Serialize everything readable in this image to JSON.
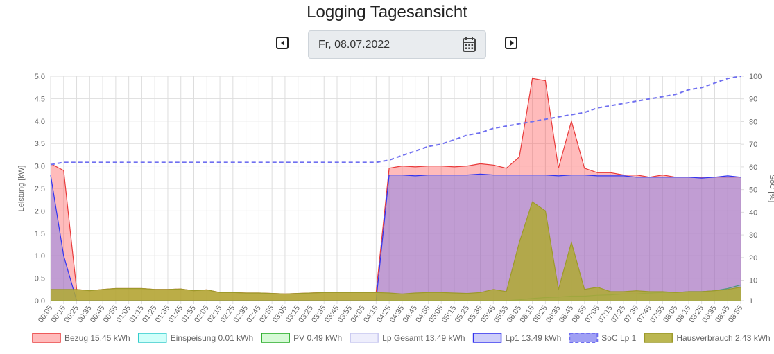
{
  "title": "Logging Tagesansicht",
  "date": "Fr, 08.07.2022",
  "chart_data": {
    "type": "line",
    "ylabel": "Leistung [kW]",
    "y2label": "SoC [%]",
    "categories": [
      "00:05",
      "00:15",
      "00:25",
      "00:35",
      "00:45",
      "00:55",
      "01:05",
      "01:15",
      "01:25",
      "01:35",
      "01:45",
      "01:55",
      "02:05",
      "02:15",
      "02:25",
      "02:35",
      "02:45",
      "02:55",
      "03:05",
      "03:15",
      "03:25",
      "03:35",
      "03:45",
      "03:55",
      "04:05",
      "04:15",
      "04:25",
      "04:35",
      "04:45",
      "04:55",
      "05:05",
      "05:15",
      "05:25",
      "05:35",
      "05:45",
      "05:55",
      "06:05",
      "06:15",
      "06:25",
      "06:35",
      "06:45",
      "06:55",
      "07:05",
      "07:15",
      "07:25",
      "07:35",
      "07:45",
      "07:55",
      "08:05",
      "08:15",
      "08:25",
      "08:35",
      "08:45",
      "08:55"
    ],
    "ylim": [
      0,
      5
    ],
    "yticks": [
      {
        "value": 0,
        "label": "0.0"
      },
      {
        "value": 0.5,
        "label": "0.5"
      },
      {
        "value": 1,
        "label": "1.0"
      },
      {
        "value": 1.5,
        "label": "1.5"
      },
      {
        "value": 2,
        "label": "2.0"
      },
      {
        "value": 2.5,
        "label": "2.5"
      },
      {
        "value": 3,
        "label": "3.0"
      },
      {
        "value": 3.5,
        "label": "3.5"
      },
      {
        "value": 4,
        "label": "4.0"
      },
      {
        "value": 4.5,
        "label": "4.5"
      },
      {
        "value": 5,
        "label": "5.0"
      }
    ],
    "y2lim": [
      1,
      100
    ],
    "y2ticks": [
      1,
      10,
      20,
      30,
      40,
      50,
      60,
      70,
      80,
      90,
      100
    ],
    "grid": true,
    "legend": "bottom",
    "series": [
      {
        "name": "Bezug 15.45 kWh",
        "color": "#e83a3a",
        "fill": "rgba(255,60,60,0.35)",
        "values": [
          3.05,
          2.9,
          0.25,
          0.22,
          0.25,
          0.27,
          0.27,
          0.27,
          0.25,
          0.25,
          0.26,
          0.22,
          0.24,
          0.18,
          0.18,
          0.17,
          0.17,
          0.16,
          0.15,
          0.16,
          0.17,
          0.18,
          0.18,
          0.18,
          0.18,
          0.18,
          2.95,
          3.0,
          2.98,
          3.0,
          3.0,
          2.98,
          3.0,
          3.05,
          3.02,
          2.95,
          3.2,
          4.95,
          4.9,
          2.95,
          4.0,
          2.95,
          2.85,
          2.85,
          2.8,
          2.8,
          2.75,
          2.8,
          2.75,
          2.75,
          2.75,
          2.75,
          2.75,
          2.75
        ]
      },
      {
        "name": "Einspeisung 0.01 kWh",
        "color": "#33cccc",
        "fill": "rgba(120,255,240,0.35)",
        "values": [
          0,
          0,
          0,
          0,
          0,
          0,
          0,
          0,
          0,
          0,
          0,
          0,
          0,
          0,
          0,
          0,
          0,
          0,
          0,
          0,
          0,
          0,
          0,
          0,
          0,
          0,
          0,
          0,
          0,
          0,
          0,
          0,
          0,
          0,
          0,
          0,
          0,
          0,
          0,
          0,
          0,
          0,
          0,
          0,
          0,
          0,
          0,
          0,
          0,
          0,
          0,
          0,
          0,
          0
        ]
      },
      {
        "name": "PV 0.49 kWh",
        "color": "#22aa22",
        "fill": "rgba(120,240,120,0.3)",
        "values": [
          0,
          0,
          0,
          0,
          0,
          0,
          0,
          0,
          0,
          0,
          0,
          0,
          0,
          0,
          0,
          0,
          0,
          0,
          0,
          0,
          0,
          0,
          0,
          0,
          0,
          0,
          0,
          0,
          0,
          0,
          0,
          0,
          0,
          0,
          0,
          0,
          0.02,
          0.05,
          0.07,
          0.08,
          0.1,
          0.1,
          0.12,
          0.13,
          0.15,
          0.15,
          0.17,
          0.18,
          0.18,
          0.2,
          0.2,
          0.22,
          0.27,
          0.35
        ]
      },
      {
        "name": "Lp Gesamt 13.49 kWh",
        "color": "#c8c8f0",
        "fill": "rgba(200,200,245,0.3)",
        "values": [
          2.8,
          1.0,
          0,
          0,
          0,
          0,
          0,
          0,
          0,
          0,
          0,
          0,
          0,
          0,
          0,
          0,
          0,
          0,
          0,
          0,
          0,
          0,
          0,
          0,
          0,
          0,
          2.8,
          2.8,
          2.78,
          2.8,
          2.8,
          2.8,
          2.8,
          2.82,
          2.8,
          2.8,
          2.8,
          2.8,
          2.8,
          2.78,
          2.8,
          2.8,
          2.78,
          2.78,
          2.78,
          2.75,
          2.75,
          2.75,
          2.75,
          2.75,
          2.73,
          2.75,
          2.78,
          2.75
        ]
      },
      {
        "name": "Lp1 13.49 kWh",
        "color": "#3333ee",
        "fill": "rgba(60,60,230,0.25)",
        "values": [
          2.8,
          1.0,
          0,
          0,
          0,
          0,
          0,
          0,
          0,
          0,
          0,
          0,
          0,
          0,
          0,
          0,
          0,
          0,
          0,
          0,
          0,
          0,
          0,
          0,
          0,
          0,
          2.8,
          2.8,
          2.78,
          2.8,
          2.8,
          2.8,
          2.8,
          2.82,
          2.8,
          2.8,
          2.8,
          2.8,
          2.8,
          2.78,
          2.8,
          2.8,
          2.78,
          2.78,
          2.78,
          2.75,
          2.75,
          2.75,
          2.75,
          2.75,
          2.73,
          2.75,
          2.78,
          2.75
        ]
      },
      {
        "name": "SoC Lp 1",
        "color": "#6f6ff0",
        "fill": "rgba(120,120,240,0.7)",
        "dashed": true,
        "axis": "y2",
        "values": [
          61,
          62,
          62,
          62,
          62,
          62,
          62,
          62,
          62,
          62,
          62,
          62,
          62,
          62,
          62,
          62,
          62,
          62,
          62,
          62,
          62,
          62,
          62,
          62,
          62,
          62,
          63,
          65,
          67,
          69,
          70,
          72,
          74,
          75,
          77,
          78,
          79,
          80,
          81,
          82,
          83,
          84,
          86,
          87,
          88,
          89,
          90,
          91,
          92,
          94,
          95,
          97,
          99,
          100
        ]
      },
      {
        "name": "Hausverbrauch 2.43 kWh",
        "color": "#9c9a2a",
        "fill": "rgba(175,170,50,0.85)",
        "values": [
          0.25,
          0.25,
          0.25,
          0.22,
          0.25,
          0.27,
          0.27,
          0.27,
          0.25,
          0.25,
          0.26,
          0.22,
          0.24,
          0.18,
          0.18,
          0.17,
          0.17,
          0.16,
          0.15,
          0.16,
          0.17,
          0.18,
          0.18,
          0.18,
          0.18,
          0.18,
          0.17,
          0.15,
          0.17,
          0.18,
          0.18,
          0.17,
          0.16,
          0.18,
          0.25,
          0.2,
          1.3,
          2.2,
          2.0,
          0.25,
          1.3,
          0.25,
          0.3,
          0.2,
          0.2,
          0.22,
          0.2,
          0.2,
          0.18,
          0.2,
          0.2,
          0.22,
          0.25,
          0.3
        ]
      }
    ]
  }
}
